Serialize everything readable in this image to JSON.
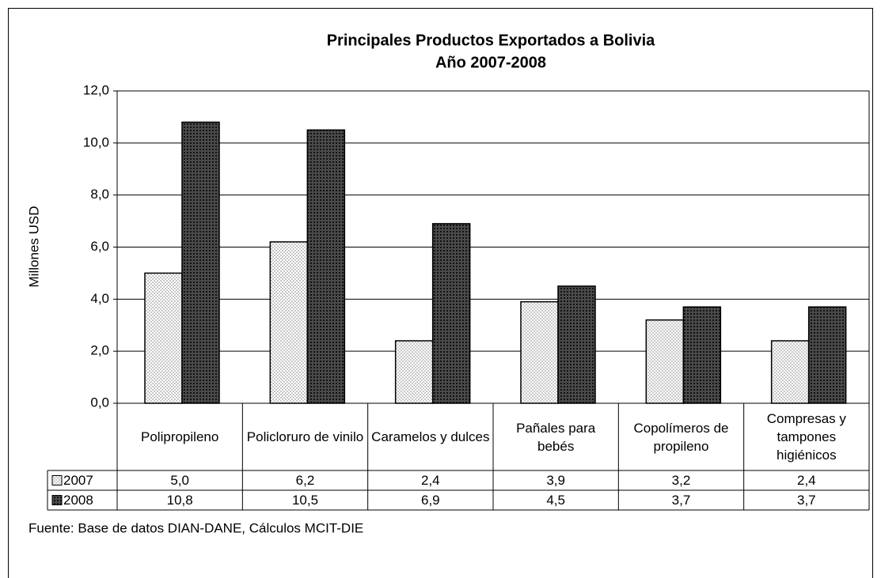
{
  "chart_data": {
    "type": "bar",
    "title": "Principales Productos Exportados a Bolivia",
    "subtitle": "Año 2007-2008",
    "y_label": "Millones USD",
    "source": "Fuente: Base de datos DIAN-DANE, Cálculos MCIT-DIE",
    "categories": [
      "Polipropileno",
      "Policloruro de vinilo",
      "Caramelos y dulces",
      "Pañales para bebés",
      "Copolímeros de propileno",
      "Compresas y tampones higiénicos"
    ],
    "series": [
      {
        "name": "2007",
        "color": "#c8c8c8",
        "values": [
          5.0,
          6.2,
          2.4,
          3.9,
          3.2,
          2.4
        ],
        "value_labels": [
          "5,0",
          "6,2",
          "2,4",
          "3,9",
          "3,2",
          "2,4"
        ]
      },
      {
        "name": "2008",
        "color": "#4a4a4a",
        "values": [
          10.8,
          10.5,
          6.9,
          4.5,
          3.7,
          3.7
        ],
        "value_labels": [
          "10,8",
          "10,5",
          "6,9",
          "4,5",
          "3,7",
          "3,7"
        ]
      }
    ],
    "ylim": [
      0,
      12
    ],
    "yticks": [
      {
        "value": 0,
        "label": "0,0"
      },
      {
        "value": 2,
        "label": "2,0"
      },
      {
        "value": 4,
        "label": "4,0"
      },
      {
        "value": 6,
        "label": "6,0"
      },
      {
        "value": 8,
        "label": "8,0"
      },
      {
        "value": 10,
        "label": "10,0"
      },
      {
        "value": 12,
        "label": "12,0"
      }
    ],
    "grid": true
  }
}
